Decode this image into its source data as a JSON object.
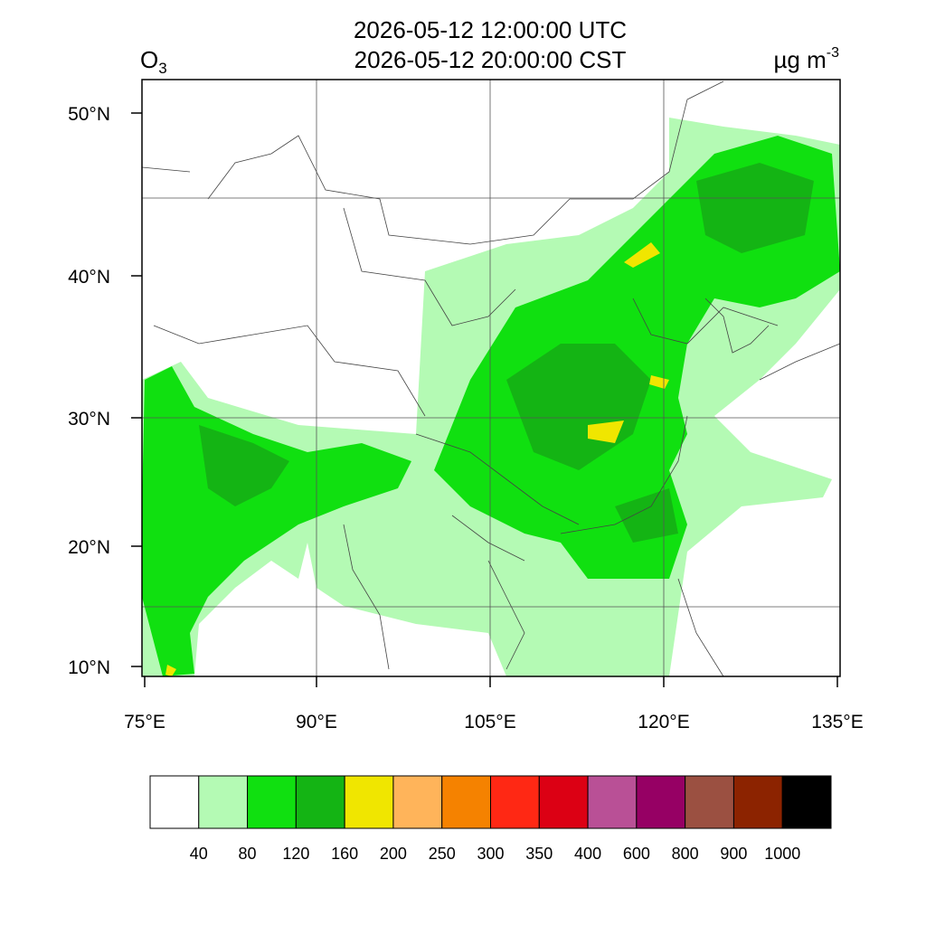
{
  "title_lines": [
    "2026-05-12 12:00:00 UTC",
    "2026-05-12 20:00:00 CST"
  ],
  "variable": {
    "name": "O",
    "subscript": "3"
  },
  "units": {
    "base": "µg m",
    "exponent": "-3"
  },
  "lon_ticks": [
    "75°E",
    "90°E",
    "105°E",
    "120°E",
    "135°E"
  ],
  "lat_ticks": [
    "50°N",
    "40°N",
    "30°N",
    "20°N",
    "10°N"
  ],
  "colorbar": {
    "levels": [
      40,
      80,
      120,
      160,
      200,
      250,
      300,
      350,
      400,
      600,
      800,
      900,
      1000
    ],
    "colors": [
      "#ffffff",
      "#b4fab4",
      "#10e010",
      "#14b414",
      "#f0e600",
      "#ffb45a",
      "#f58200",
      "#ff2814",
      "#dc0014",
      "#b95096",
      "#960064",
      "#9b5041",
      "#8c2300",
      "#000000"
    ]
  }
}
